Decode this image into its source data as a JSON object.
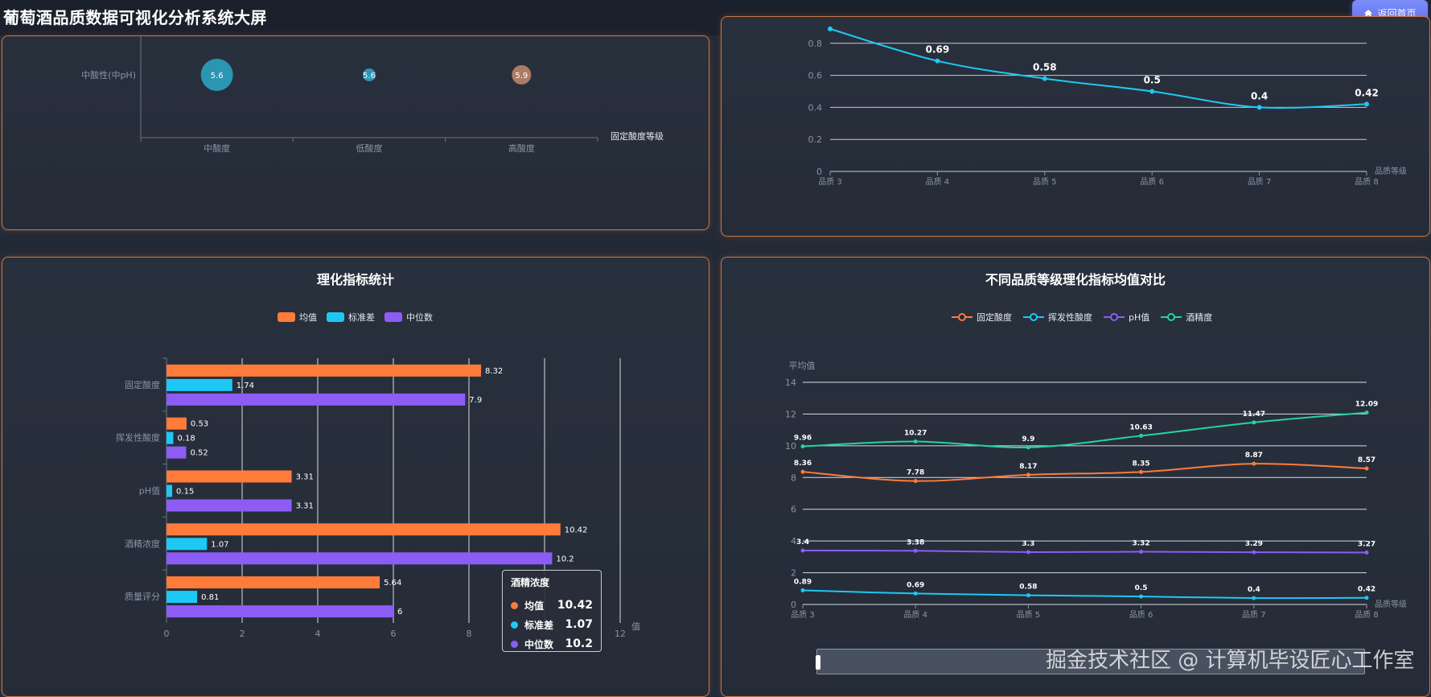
{
  "header": {
    "title": "葡萄酒品质数据可视化分析系统大屏",
    "home_button": "返回首页",
    "home_icon": "home-icon"
  },
  "colors": {
    "orange": "#ff7b3a",
    "cyan": "#1ec8f5",
    "purple": "#8d5cf5",
    "green": "#26d3a0",
    "bubble_teal": "#2aa8c7",
    "bubble_brown": "#c48a6b"
  },
  "panels": {
    "bubble": {
      "y_category": "中酸性(中pH)",
      "x_axis_name": "固定酸度等级",
      "chart_data": {
        "type": "scatter",
        "categories": [
          "中酸度",
          "低酸度",
          "高酸度"
        ],
        "y_category": "中酸性(中pH)",
        "points": [
          {
            "x": "中酸度",
            "value": 5.6,
            "size": 40
          },
          {
            "x": "低酸度",
            "value": 5.6,
            "size": 16
          },
          {
            "x": "高酸度",
            "value": 5.9,
            "size": 24
          }
        ]
      }
    },
    "volatile_line": {
      "x_axis_name": "品质等级",
      "chart_data": {
        "type": "line",
        "categories": [
          "品质 3",
          "品质 4",
          "品质 5",
          "品质 6",
          "品质 7",
          "品质 8"
        ],
        "values": [
          0.89,
          0.69,
          0.58,
          0.5,
          0.4,
          0.42
        ],
        "labels": [
          "",
          "0.69",
          "0.58",
          "0.5",
          "0.4",
          "0.42"
        ],
        "y_ticks": [
          "0",
          "0.2",
          "0.4",
          "0.6",
          "0.8"
        ],
        "ylim": [
          0,
          1
        ]
      }
    },
    "stats": {
      "title": "理化指标统计",
      "legend": [
        "均值",
        "标准差",
        "中位数"
      ],
      "x_axis_name": "值",
      "chart_data": {
        "type": "bar",
        "categories": [
          "固定酸度",
          "挥发性酸度",
          "pH值",
          "酒精浓度",
          "质量评分"
        ],
        "series": [
          {
            "name": "均值",
            "values": [
              8.32,
              0.53,
              3.31,
              10.42,
              5.64
            ]
          },
          {
            "name": "标准差",
            "values": [
              1.74,
              0.18,
              0.15,
              1.07,
              0.81
            ]
          },
          {
            "name": "中位数",
            "values": [
              7.9,
              0.52,
              3.31,
              10.2,
              6
            ]
          }
        ],
        "x_ticks": [
          "0",
          "2",
          "4",
          "6",
          "8",
          "10",
          "12"
        ],
        "xlim": [
          0,
          12
        ]
      },
      "tooltip": {
        "title": "酒精浓度",
        "rows": [
          {
            "label": "均值",
            "value": "10.42"
          },
          {
            "label": "标准差",
            "value": "1.07"
          },
          {
            "label": "中位数",
            "value": "10.2"
          }
        ]
      }
    },
    "compare": {
      "title": "不同品质等级理化指标均值对比",
      "legend": [
        "固定酸度",
        "挥发性酸度",
        "pH值",
        "酒精度"
      ],
      "y_axis_name": "平均值",
      "x_axis_name": "品质等级",
      "chart_data": {
        "type": "line",
        "categories": [
          "品质 3",
          "品质 4",
          "品质 5",
          "品质 6",
          "品质 7",
          "品质 8"
        ],
        "series": [
          {
            "name": "固定酸度",
            "values": [
              8.36,
              7.78,
              8.17,
              8.35,
              8.87,
              8.57
            ]
          },
          {
            "name": "挥发性酸度",
            "values": [
              0.89,
              0.69,
              0.58,
              0.5,
              0.4,
              0.42
            ]
          },
          {
            "name": "pH值",
            "values": [
              3.4,
              3.38,
              3.3,
              3.32,
              3.29,
              3.27
            ]
          },
          {
            "name": "酒精度",
            "values": [
              9.96,
              10.27,
              9.9,
              10.63,
              11.47,
              12.09
            ]
          }
        ],
        "y_ticks": [
          "0",
          "2",
          "4",
          "6",
          "8",
          "10",
          "12",
          "14"
        ],
        "ylim": [
          0,
          14
        ]
      }
    }
  },
  "watermark": "掘金技术社区 @ 计算机毕设匠心工作室"
}
